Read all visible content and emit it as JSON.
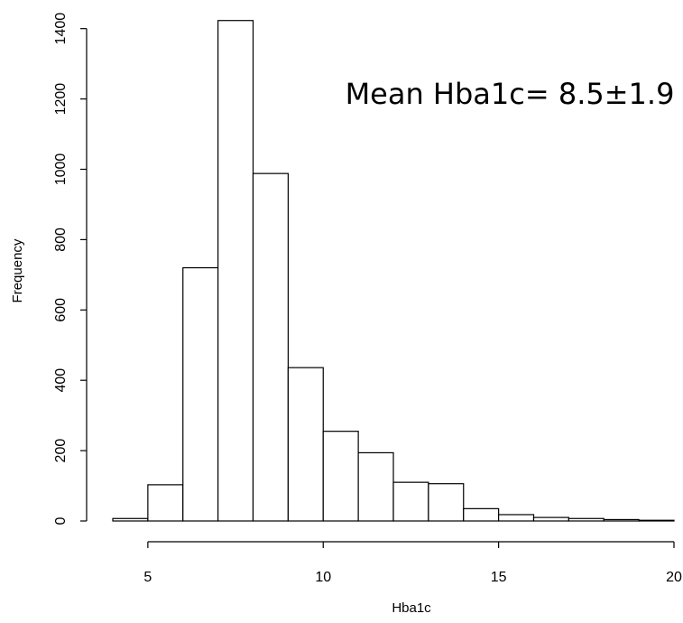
{
  "chart_data": {
    "type": "bar",
    "title": "",
    "xlabel": "Hba1c",
    "ylabel": "Frequency",
    "annotation": "Mean Hba1c= 8.5±1.9",
    "bin_edges": [
      4,
      5,
      6,
      7,
      8,
      9,
      10,
      11,
      12,
      13,
      14,
      15,
      16,
      17,
      18,
      19,
      20
    ],
    "values": [
      7,
      103,
      720,
      1423,
      988,
      436,
      255,
      194,
      110,
      106,
      35,
      18,
      10,
      7,
      4,
      2
    ],
    "xlim": [
      4,
      20
    ],
    "ylim": [
      0,
      1430
    ],
    "x_ticks": [
      5,
      10,
      15,
      20
    ],
    "y_ticks": [
      0,
      200,
      400,
      600,
      800,
      1000,
      1200,
      1400
    ],
    "grid": false,
    "legend": "none",
    "colors": {
      "bar_fill": "#ffffff",
      "bar_stroke": "#000000"
    }
  }
}
